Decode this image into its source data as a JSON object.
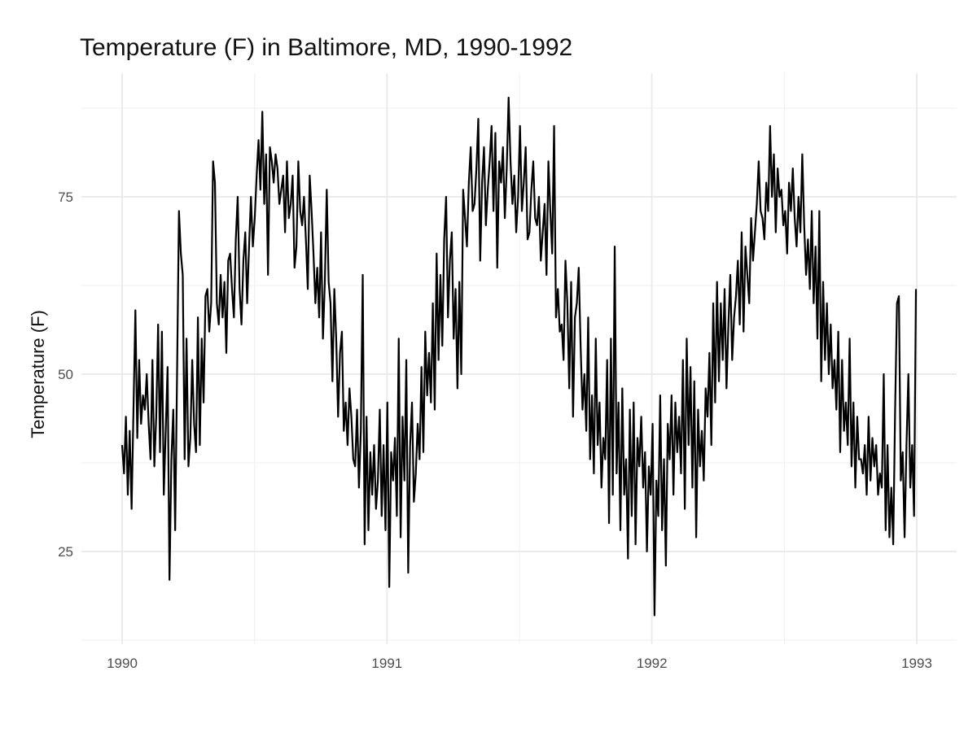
{
  "chart_data": {
    "type": "line",
    "title": "Temperature (F) in Baltimore, MD, 1990-1992",
    "xlabel": "",
    "ylabel": "Temperature (F)",
    "xlim": [
      1990,
      1993
    ],
    "ylim": [
      13,
      90
    ],
    "x_ticks": [
      "1990",
      "1991",
      "1992",
      "1993"
    ],
    "y_ticks": [
      "25",
      "50",
      "75"
    ],
    "grid": true,
    "legend": "none",
    "line_color": "#000000",
    "series": [
      {
        "start": "1990-01-01",
        "end": "1992-12-31",
        "interval": "12 points per month (approximately every 2.5 days)",
        "values": [
          40,
          36,
          44,
          33,
          42,
          31,
          45,
          59,
          41,
          52,
          43,
          47,
          45,
          50,
          43,
          38,
          52,
          37,
          44,
          57,
          39,
          56,
          33,
          42,
          51,
          21,
          38,
          45,
          28,
          50,
          73,
          67,
          64,
          38,
          55,
          37,
          41,
          52,
          43,
          39,
          58,
          40,
          55,
          46,
          61,
          62,
          56,
          60,
          80,
          77,
          60,
          57,
          64,
          58,
          63,
          53,
          66,
          67,
          62,
          58,
          69,
          75,
          62,
          57,
          66,
          70,
          60,
          68,
          75,
          68,
          72,
          78,
          83,
          76,
          87,
          74,
          81,
          64,
          82,
          80,
          77,
          81,
          79,
          74,
          76,
          78,
          70,
          80,
          72,
          74,
          78,
          65,
          68,
          80,
          73,
          71,
          75,
          69,
          62,
          78,
          73,
          67,
          60,
          65,
          58,
          70,
          55,
          63,
          76,
          63,
          60,
          49,
          62,
          55,
          44,
          53,
          56,
          42,
          46,
          40,
          48,
          44,
          38,
          37,
          45,
          34,
          42,
          64,
          26,
          44,
          28,
          39,
          33,
          40,
          31,
          35,
          45,
          30,
          40,
          28,
          46,
          20,
          39,
          35,
          41,
          30,
          55,
          27,
          44,
          35,
          52,
          22,
          40,
          46,
          32,
          36,
          43,
          38,
          51,
          39,
          56,
          47,
          53,
          46,
          60,
          45,
          67,
          52,
          64,
          54,
          69,
          75,
          58,
          66,
          70,
          55,
          62,
          48,
          63,
          50,
          76,
          72,
          68,
          77,
          82,
          73,
          74,
          79,
          86,
          66,
          77,
          82,
          71,
          76,
          80,
          85,
          73,
          84,
          65,
          80,
          77,
          82,
          72,
          79,
          89,
          80,
          74,
          78,
          70,
          75,
          85,
          73,
          77,
          82,
          69,
          70,
          76,
          80,
          72,
          71,
          75,
          66,
          70,
          74,
          64,
          80,
          73,
          67,
          85,
          58,
          62,
          56,
          57,
          52,
          66,
          60,
          48,
          63,
          44,
          58,
          60,
          65,
          54,
          45,
          50,
          42,
          58,
          38,
          47,
          36,
          55,
          40,
          46,
          34,
          41,
          38,
          52,
          29,
          55,
          33,
          68,
          36,
          46,
          28,
          48,
          33,
          38,
          24,
          45,
          30,
          46,
          26,
          41,
          37,
          44,
          34,
          39,
          25,
          37,
          33,
          43,
          16,
          35,
          30,
          47,
          28,
          38,
          23,
          43,
          38,
          47,
          33,
          46,
          39,
          44,
          36,
          52,
          31,
          55,
          40,
          51,
          34,
          49,
          27,
          45,
          37,
          42,
          35,
          48,
          44,
          53,
          40,
          60,
          46,
          63,
          49,
          60,
          52,
          62,
          48,
          57,
          64,
          52,
          58,
          61,
          66,
          57,
          70,
          56,
          68,
          64,
          60,
          72,
          66,
          70,
          74,
          80,
          73,
          72,
          69,
          77,
          73,
          85,
          75,
          81,
          70,
          79,
          75,
          76,
          71,
          73,
          67,
          77,
          73,
          79,
          72,
          68,
          75,
          70,
          81,
          71,
          64,
          69,
          62,
          73,
          60,
          68,
          55,
          73,
          49,
          63,
          52,
          60,
          50,
          57,
          48,
          52,
          45,
          56,
          39,
          52,
          42,
          46,
          40,
          55,
          37,
          46,
          34,
          44,
          38,
          38,
          36,
          40,
          33,
          44,
          35,
          41,
          37,
          40,
          33,
          36,
          34,
          50,
          28,
          40,
          27,
          34,
          26,
          45,
          60,
          61,
          35,
          39,
          27,
          40,
          50,
          34,
          40,
          30,
          62
        ]
      }
    ]
  }
}
